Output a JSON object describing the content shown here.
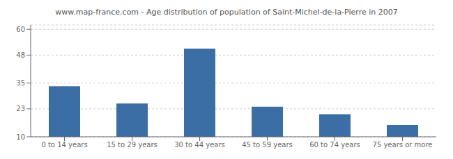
{
  "chart_data": {
    "type": "bar",
    "title": "www.map-france.com - Age distribution of population of Saint-Michel-de-la-Pierre in 2007",
    "categories": [
      "0 to 14 years",
      "15 to 29 years",
      "30 to 44 years",
      "45 to 59 years",
      "60 to 74 years",
      "75 years or more"
    ],
    "values": [
      33.5,
      25.5,
      51.0,
      24.0,
      20.5,
      15.5
    ],
    "color": "#3a6ea5",
    "ylim": [
      10,
      62
    ],
    "yticks": [
      10,
      23,
      35,
      48,
      60
    ],
    "grid": true
  }
}
